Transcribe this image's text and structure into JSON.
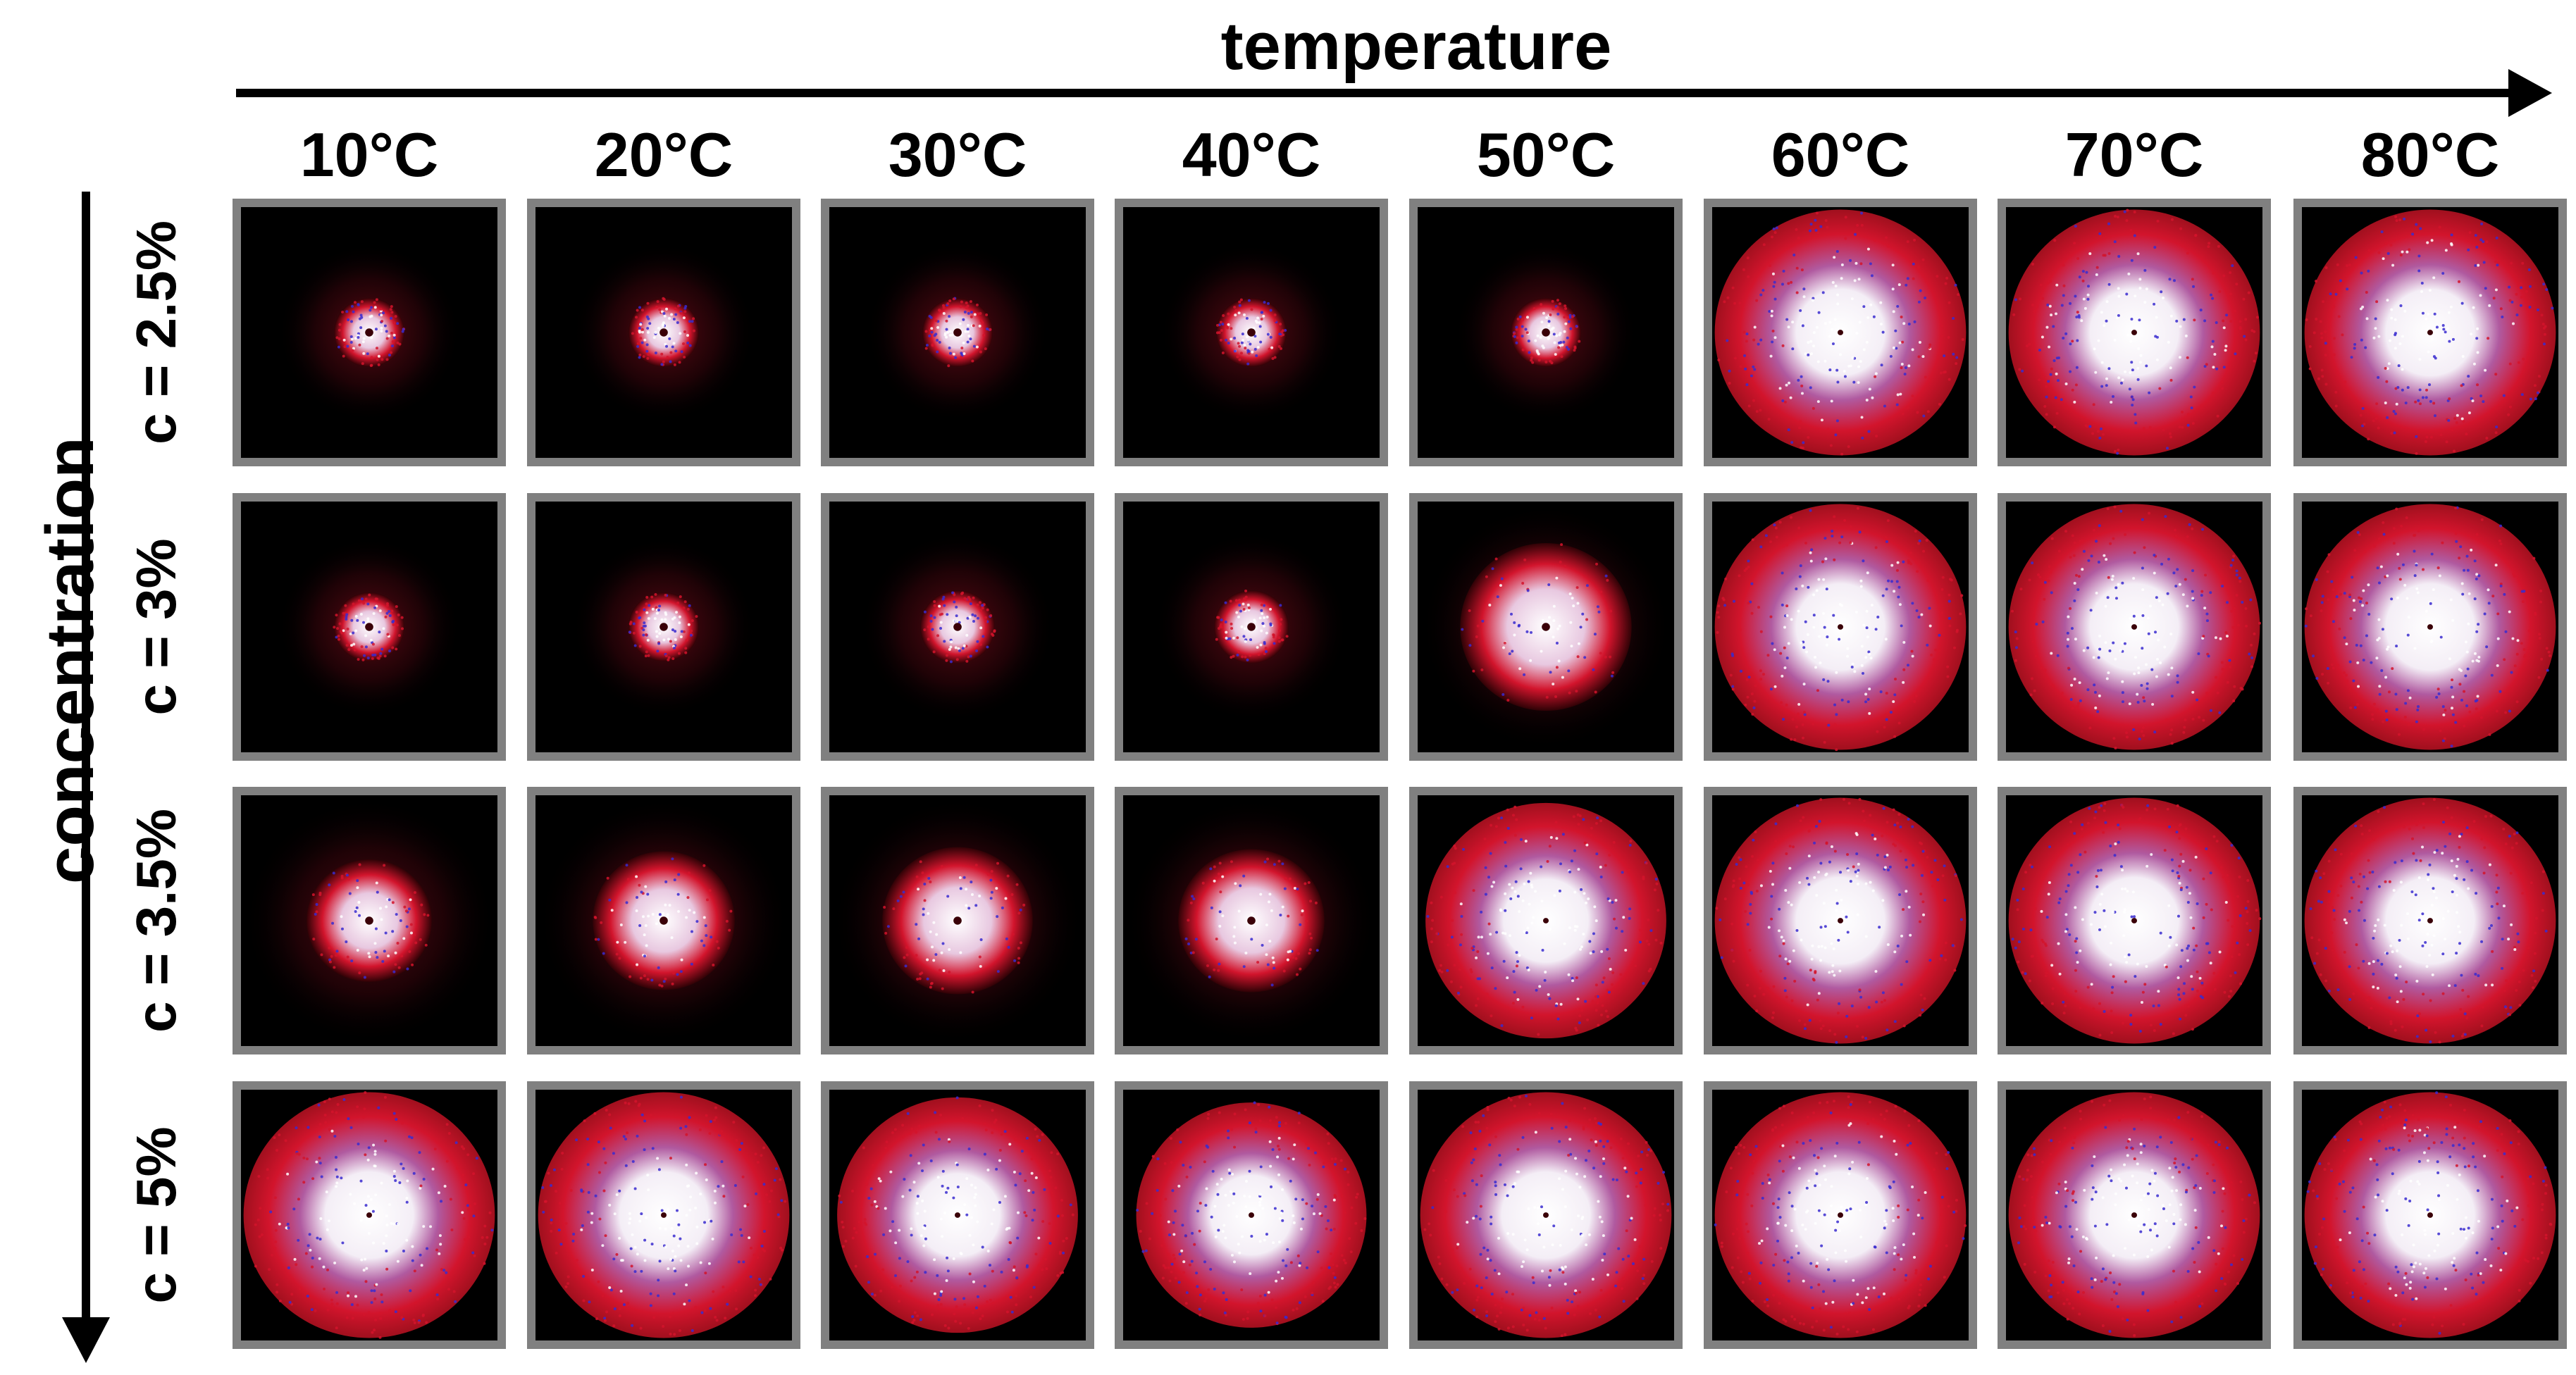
{
  "axis_titles": {
    "horizontal": "temperature",
    "vertical": "concentration"
  },
  "columns": [
    "10°C",
    "20°C",
    "30°C",
    "40°C",
    "50°C",
    "60°C",
    "70°C",
    "80°C"
  ],
  "rows": [
    "c = 2.5%",
    "c = 3%",
    "c = 3.5%",
    "c = 5%"
  ],
  "colors": {
    "background_dark": "#000000",
    "scatter_red": "#d2142c",
    "scatter_blue": "#3a2ccf",
    "scatter_white": "#ffffff",
    "frame_gray": "#808080"
  },
  "pattern_spread": [
    [
      0.14,
      0.14,
      0.14,
      0.14,
      0.14,
      1.0,
      1.0,
      1.0
    ],
    [
      0.14,
      0.14,
      0.16,
      0.16,
      0.62,
      1.0,
      1.0,
      1.0
    ],
    [
      0.4,
      0.48,
      0.52,
      0.5,
      0.95,
      1.0,
      1.0,
      1.0
    ],
    [
      1.0,
      1.0,
      0.95,
      0.9,
      1.0,
      1.0,
      1.0,
      1.0
    ]
  ]
}
